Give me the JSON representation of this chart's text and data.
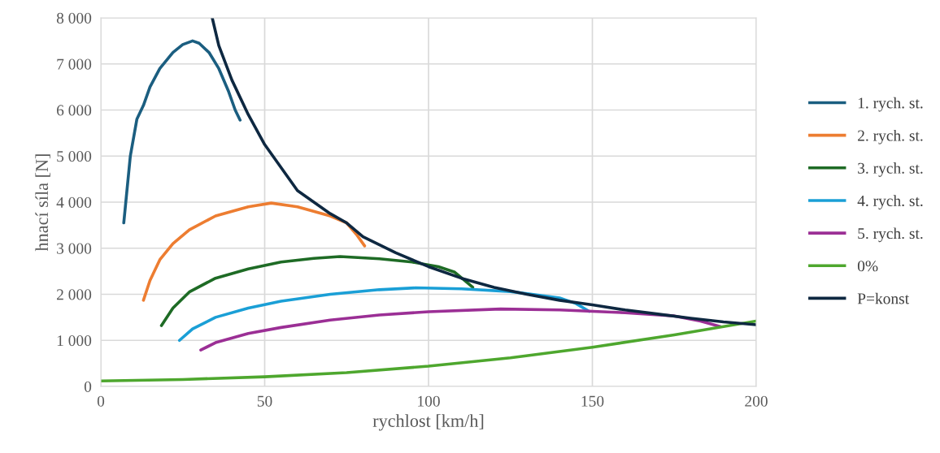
{
  "chart_data": {
    "type": "line",
    "xlabel": "rychlost [km/h]",
    "ylabel": "hnací síla [N]",
    "xlim": [
      0,
      200
    ],
    "xticks": [
      0,
      50,
      100,
      150,
      200
    ],
    "ylim": [
      0,
      8000
    ],
    "yticks": [
      0,
      {
        "value": 1000,
        "label": "1 000"
      },
      {
        "value": 2000,
        "label": "2 000"
      },
      {
        "value": 3000,
        "label": "3 000"
      },
      {
        "value": 4000,
        "label": "4 000"
      },
      {
        "value": 5000,
        "label": "5 000"
      },
      {
        "value": 6000,
        "label": "6 000"
      },
      {
        "value": 7000,
        "label": "7 000"
      },
      {
        "value": 8000,
        "label": "8 000"
      }
    ],
    "grid": true,
    "legend": "right",
    "marker": "none",
    "line_style": "solid",
    "series": [
      {
        "name": "1. rych. st.",
        "color": "#1b5e80",
        "x": [
          7,
          9,
          11,
          13,
          15,
          18,
          22,
          25,
          28,
          30,
          33,
          36,
          39,
          41,
          42.5
        ],
        "values": [
          3550,
          5000,
          5800,
          6100,
          6500,
          6900,
          7250,
          7420,
          7500,
          7450,
          7250,
          6900,
          6400,
          6000,
          5780
        ]
      },
      {
        "name": "2. rych. st.",
        "color": "#ed7d31",
        "x": [
          13,
          15,
          18,
          22,
          27,
          35,
          45,
          52,
          60,
          70,
          75,
          78,
          80.5
        ],
        "values": [
          1870,
          2300,
          2750,
          3100,
          3400,
          3700,
          3900,
          3980,
          3900,
          3700,
          3550,
          3300,
          3050
        ]
      },
      {
        "name": "3. rych. st.",
        "color": "#1e6b25",
        "x": [
          18.5,
          22,
          27,
          35,
          45,
          55,
          65,
          73,
          85,
          95,
          103,
          108,
          111,
          113.5
        ],
        "values": [
          1320,
          1700,
          2050,
          2350,
          2550,
          2700,
          2780,
          2820,
          2770,
          2700,
          2600,
          2480,
          2300,
          2150
        ]
      },
      {
        "name": "4. rych. st.",
        "color": "#1a9fd6",
        "x": [
          24,
          28,
          35,
          45,
          55,
          70,
          85,
          96,
          110,
          125,
          140,
          145,
          149
        ],
        "values": [
          1000,
          1250,
          1500,
          1700,
          1850,
          2000,
          2100,
          2140,
          2120,
          2060,
          1920,
          1800,
          1630
        ]
      },
      {
        "name": "5. rych. st.",
        "color": "#9b2f95",
        "x": [
          30.5,
          35,
          45,
          55,
          70,
          85,
          100,
          122,
          140,
          160,
          175,
          183,
          189
        ],
        "values": [
          790,
          950,
          1150,
          1280,
          1440,
          1550,
          1620,
          1680,
          1660,
          1600,
          1530,
          1420,
          1300
        ]
      },
      {
        "name": "0%",
        "color": "#4ea72e",
        "x": [
          0,
          25,
          50,
          75,
          100,
          125,
          150,
          175,
          200
        ],
        "values": [
          120,
          150,
          210,
          300,
          440,
          620,
          850,
          1120,
          1420
        ]
      },
      {
        "name": "P=konst",
        "color": "#0e2841",
        "x": [
          34,
          36,
          40,
          45,
          50,
          60,
          70,
          75,
          80,
          90,
          100,
          110,
          120,
          130,
          140,
          150,
          160,
          170,
          180,
          190,
          200
        ],
        "values": [
          8000,
          7400,
          6650,
          5900,
          5250,
          4250,
          3750,
          3550,
          3250,
          2900,
          2600,
          2350,
          2150,
          2000,
          1870,
          1770,
          1660,
          1570,
          1480,
          1400,
          1340
        ]
      }
    ]
  }
}
